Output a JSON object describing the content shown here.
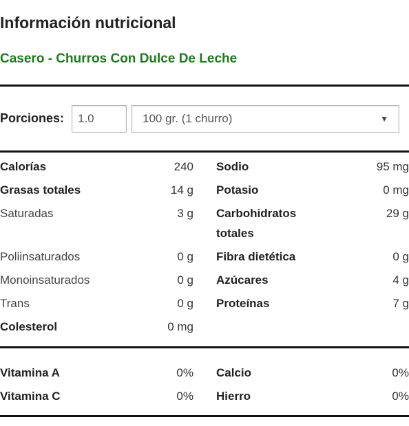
{
  "header": {
    "title": "Información nutricional",
    "food_name": "Casero - Churros Con Dulce De Leche"
  },
  "servings": {
    "label": "Porciones:",
    "amount": "1.0",
    "size_selected": "100 gr. (1 churro)"
  },
  "nutrients_left": [
    {
      "label": "Calorías",
      "value": "240"
    },
    {
      "label": "Grasas totales",
      "value": "14 g"
    },
    {
      "label": "Saturadas",
      "value": "3 g"
    },
    {
      "label": "Poliinsaturados",
      "value": "0 g"
    },
    {
      "label": "Monoinsaturados",
      "value": "0 g"
    },
    {
      "label": "Trans",
      "value": "0 g"
    },
    {
      "label": "Colesterol",
      "value": "0 mg"
    }
  ],
  "nutrients_right": [
    {
      "label": "Sodio",
      "value": "95 mg"
    },
    {
      "label": "Potasio",
      "value": "0 mg"
    },
    {
      "label": "Carbohidratos totales",
      "value": "29 g"
    },
    {
      "label": "Fibra dietética",
      "value": "0 g"
    },
    {
      "label": "Azúcares",
      "value": "4 g"
    },
    {
      "label": "Proteínas",
      "value": "7 g"
    }
  ],
  "vitamins_left": [
    {
      "label": "Vitamina A",
      "value": "0%"
    },
    {
      "label": "Vitamina C",
      "value": "0%"
    }
  ],
  "vitamins_right": [
    {
      "label": "Calcio",
      "value": "0%"
    },
    {
      "label": "Hierro",
      "value": "0%"
    }
  ],
  "colors": {
    "food_name": "#1f7a1f",
    "text": "#222222",
    "rule": "#111111"
  },
  "icons": {
    "select_caret": "triangle-down"
  }
}
